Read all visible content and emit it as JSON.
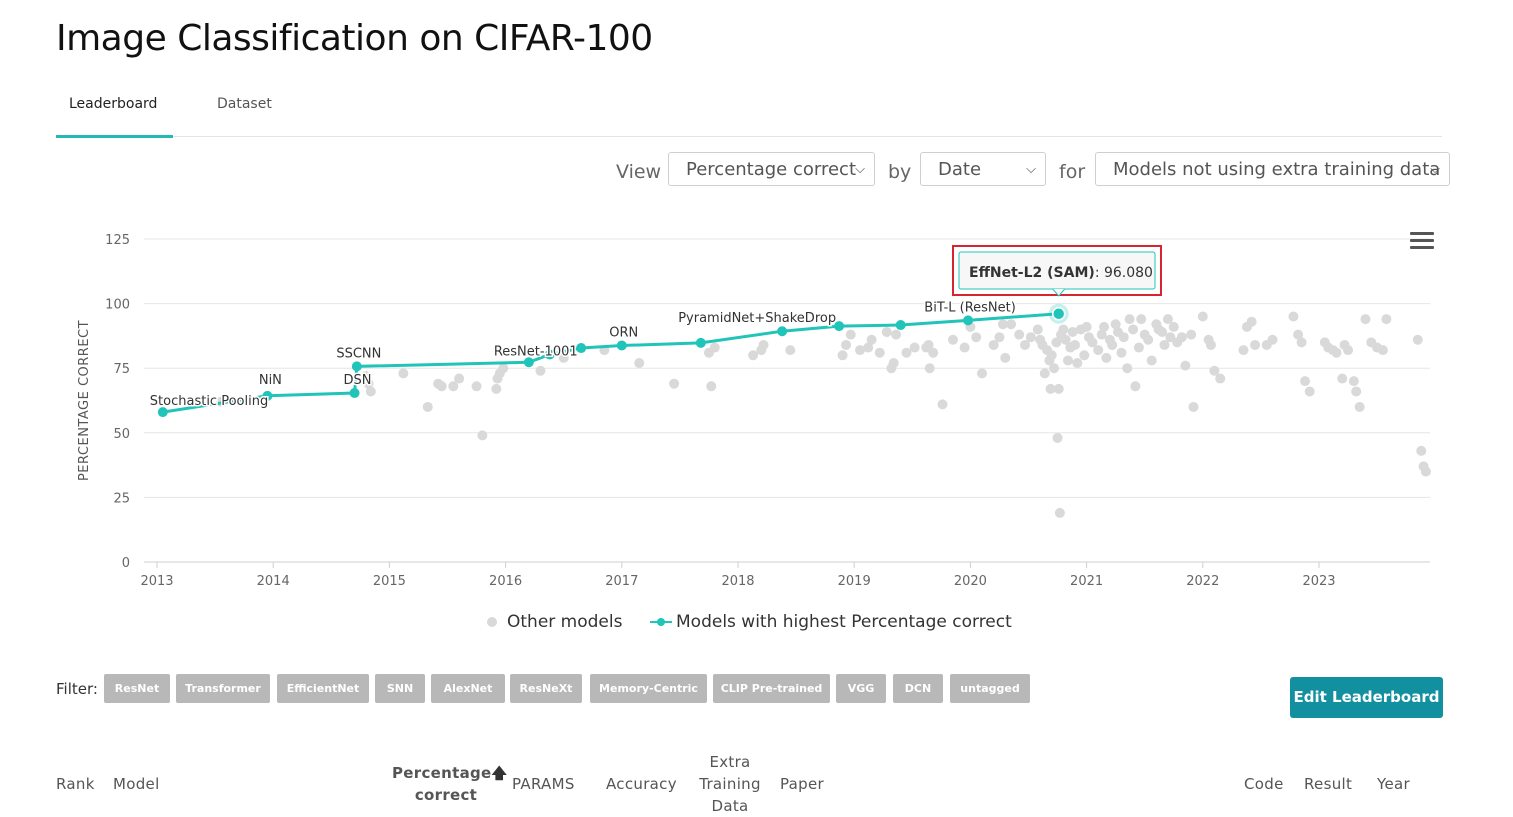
{
  "title": "Image Classification on CIFAR-100",
  "tabs": [
    {
      "label": "Leaderboard",
      "active": true
    },
    {
      "label": "Dataset",
      "active": false
    }
  ],
  "view_bar": {
    "view_label": "View",
    "metric_value": "Percentage correct",
    "by_label": "by",
    "order_value": "Date",
    "for_label": "for",
    "subset_value": "Models not using extra training data"
  },
  "tooltip": {
    "model": "EffNet-L2 (SAM)",
    "value": ": 96.080"
  },
  "legend": {
    "other": "Other models",
    "best": "Models with highest Percentage correct"
  },
  "filter": {
    "label": "Filter:",
    "tags": [
      "ResNet",
      "Transformer",
      "EfficientNet",
      "SNN",
      "AlexNet",
      "ResNeXt",
      "Memory-Centric",
      "CLIP Pre-trained",
      "VGG",
      "DCN",
      "untagged"
    ]
  },
  "edit_button": "Edit Leaderboard",
  "table_headers": {
    "rank": "Rank",
    "model": "Model",
    "percentage_line1": "Percentage",
    "percentage_line2": "correct",
    "params": "PARAMS",
    "accuracy": "Accuracy",
    "extra_line1": "Extra",
    "extra_line2": "Training",
    "extra_line3": "Data",
    "paper": "Paper",
    "code": "Code",
    "result": "Result",
    "year": "Year"
  },
  "colors": {
    "accent": "#21c4b8",
    "other_points": "#d9d9d9",
    "button": "#1390a0",
    "tooltip_highlight": "#d9232d"
  },
  "chart_data": {
    "type": "scatter",
    "title": "",
    "xlabel": "",
    "ylabel": "PERCENTAGE CORRECT",
    "ylim": [
      0,
      125
    ],
    "yticks": [
      0,
      25,
      50,
      75,
      100,
      125
    ],
    "xlim": [
      2013,
      2024
    ],
    "xticks": [
      2013,
      2014,
      2015,
      2016,
      2017,
      2018,
      2019,
      2020,
      2021,
      2022,
      2023
    ],
    "grid": true,
    "legend_position": "bottom",
    "series": [
      {
        "name": "Models with highest Percentage correct",
        "kind": "line",
        "points": [
          {
            "x": 2013.05,
            "y": 58.0,
            "label": "Stochastic Pooling"
          },
          {
            "x": 2013.95,
            "y": 64.3,
            "label": "NiN"
          },
          {
            "x": 2014.7,
            "y": 65.4,
            "label": "DSN"
          },
          {
            "x": 2014.72,
            "y": 75.7,
            "label": "SSCNN"
          },
          {
            "x": 2016.2,
            "y": 77.3,
            "label": ""
          },
          {
            "x": 2016.38,
            "y": 80.3,
            "label": "ResNet-1001"
          },
          {
            "x": 2016.65,
            "y": 82.8,
            "label": ""
          },
          {
            "x": 2017.0,
            "y": 83.8,
            "label": "ORN"
          },
          {
            "x": 2017.68,
            "y": 84.8,
            "label": ""
          },
          {
            "x": 2018.38,
            "y": 89.3,
            "label": "PyramidNet+ShakeDrop"
          },
          {
            "x": 2018.87,
            "y": 91.3,
            "label": ""
          },
          {
            "x": 2019.4,
            "y": 91.7,
            "label": ""
          },
          {
            "x": 2019.98,
            "y": 93.5,
            "label": "BiT-L (ResNet)"
          },
          {
            "x": 2020.76,
            "y": 96.08,
            "label": "EffNet-L2 (SAM)"
          }
        ]
      },
      {
        "name": "Other models",
        "kind": "scatter",
        "points": [
          [
            2013.55,
            62
          ],
          [
            2014.8,
            72
          ],
          [
            2014.82,
            69
          ],
          [
            2014.84,
            66
          ],
          [
            2015.12,
            73
          ],
          [
            2015.33,
            60
          ],
          [
            2015.42,
            69
          ],
          [
            2015.45,
            68
          ],
          [
            2015.55,
            68
          ],
          [
            2015.6,
            71
          ],
          [
            2015.75,
            68
          ],
          [
            2015.8,
            49
          ],
          [
            2015.92,
            67
          ],
          [
            2015.93,
            71
          ],
          [
            2015.95,
            73
          ],
          [
            2015.98,
            75
          ],
          [
            2016.3,
            74
          ],
          [
            2016.5,
            79
          ],
          [
            2016.85,
            82
          ],
          [
            2017.15,
            77
          ],
          [
            2017.45,
            69
          ],
          [
            2017.75,
            81
          ],
          [
            2017.8,
            83
          ],
          [
            2017.77,
            68
          ],
          [
            2018.13,
            80
          ],
          [
            2018.2,
            82
          ],
          [
            2018.22,
            84
          ],
          [
            2018.45,
            82
          ],
          [
            2018.9,
            80
          ],
          [
            2018.93,
            84
          ],
          [
            2018.97,
            88
          ],
          [
            2019.05,
            82
          ],
          [
            2019.12,
            83
          ],
          [
            2019.15,
            86
          ],
          [
            2019.22,
            81
          ],
          [
            2019.28,
            89
          ],
          [
            2019.32,
            75
          ],
          [
            2019.34,
            77
          ],
          [
            2019.36,
            88
          ],
          [
            2019.45,
            81
          ],
          [
            2019.52,
            83
          ],
          [
            2019.62,
            83
          ],
          [
            2019.64,
            84
          ],
          [
            2019.65,
            75
          ],
          [
            2019.68,
            81
          ],
          [
            2019.76,
            61
          ],
          [
            2019.85,
            86
          ],
          [
            2019.95,
            83
          ],
          [
            2020.0,
            91
          ],
          [
            2020.05,
            87
          ],
          [
            2020.1,
            73
          ],
          [
            2020.2,
            84
          ],
          [
            2020.25,
            87
          ],
          [
            2020.28,
            92
          ],
          [
            2020.3,
            79
          ],
          [
            2020.35,
            92
          ],
          [
            2020.42,
            88
          ],
          [
            2020.47,
            84
          ],
          [
            2020.52,
            87
          ],
          [
            2020.58,
            90
          ],
          [
            2020.6,
            86
          ],
          [
            2020.62,
            84
          ],
          [
            2020.64,
            73
          ],
          [
            2020.66,
            82
          ],
          [
            2020.68,
            78
          ],
          [
            2020.69,
            67
          ],
          [
            2020.7,
            80
          ],
          [
            2020.72,
            75
          ],
          [
            2020.74,
            85
          ],
          [
            2020.75,
            48
          ],
          [
            2020.76,
            67
          ],
          [
            2020.77,
            19
          ],
          [
            2020.78,
            88
          ],
          [
            2020.8,
            90
          ],
          [
            2020.82,
            86
          ],
          [
            2020.84,
            78
          ],
          [
            2020.86,
            83
          ],
          [
            2020.88,
            89
          ],
          [
            2020.9,
            84
          ],
          [
            2020.92,
            77
          ],
          [
            2020.95,
            90
          ],
          [
            2020.98,
            80
          ],
          [
            2021.0,
            91
          ],
          [
            2021.02,
            87
          ],
          [
            2021.05,
            85
          ],
          [
            2021.1,
            82
          ],
          [
            2021.13,
            88
          ],
          [
            2021.15,
            91
          ],
          [
            2021.17,
            79
          ],
          [
            2021.2,
            86
          ],
          [
            2021.22,
            84
          ],
          [
            2021.25,
            92
          ],
          [
            2021.27,
            89
          ],
          [
            2021.3,
            81
          ],
          [
            2021.32,
            87
          ],
          [
            2021.35,
            75
          ],
          [
            2021.37,
            94
          ],
          [
            2021.4,
            90
          ],
          [
            2021.42,
            68
          ],
          [
            2021.45,
            83
          ],
          [
            2021.47,
            94
          ],
          [
            2021.5,
            88
          ],
          [
            2021.53,
            86
          ],
          [
            2021.56,
            78
          ],
          [
            2021.6,
            92
          ],
          [
            2021.62,
            90
          ],
          [
            2021.65,
            89
          ],
          [
            2021.67,
            84
          ],
          [
            2021.7,
            94
          ],
          [
            2021.72,
            87
          ],
          [
            2021.75,
            91
          ],
          [
            2021.78,
            85
          ],
          [
            2021.82,
            87
          ],
          [
            2021.85,
            76
          ],
          [
            2021.9,
            88
          ],
          [
            2021.92,
            60
          ],
          [
            2022.0,
            95
          ],
          [
            2022.05,
            86
          ],
          [
            2022.07,
            84
          ],
          [
            2022.1,
            74
          ],
          [
            2022.15,
            71
          ],
          [
            2022.35,
            82
          ],
          [
            2022.38,
            91
          ],
          [
            2022.42,
            93
          ],
          [
            2022.45,
            84
          ],
          [
            2022.55,
            84
          ],
          [
            2022.6,
            86
          ],
          [
            2022.78,
            95
          ],
          [
            2022.82,
            88
          ],
          [
            2022.85,
            85
          ],
          [
            2022.88,
            70
          ],
          [
            2022.92,
            66
          ],
          [
            2023.05,
            85
          ],
          [
            2023.08,
            83
          ],
          [
            2023.12,
            82
          ],
          [
            2023.15,
            81
          ],
          [
            2023.2,
            71
          ],
          [
            2023.22,
            84
          ],
          [
            2023.25,
            82
          ],
          [
            2023.3,
            70
          ],
          [
            2023.32,
            66
          ],
          [
            2023.35,
            60
          ],
          [
            2023.4,
            94
          ],
          [
            2023.45,
            85
          ],
          [
            2023.5,
            83
          ],
          [
            2023.55,
            82
          ],
          [
            2023.58,
            94
          ],
          [
            2023.85,
            86
          ],
          [
            2023.88,
            43
          ],
          [
            2023.9,
            37
          ],
          [
            2023.92,
            35
          ]
        ]
      }
    ]
  }
}
